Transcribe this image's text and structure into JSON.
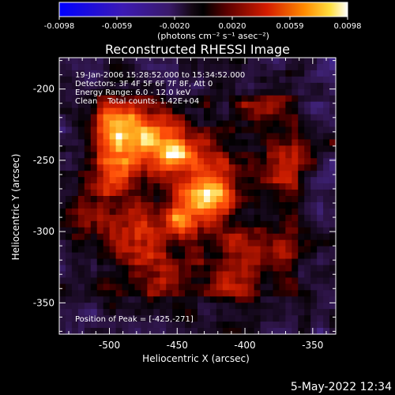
{
  "colorbar": {
    "ticks": [
      "-0.0098",
      "-0.0059",
      "-0.0020",
      "0.0020",
      "0.0059",
      "0.0098"
    ],
    "unit_label": "(photons cm⁻² s⁻¹ asec⁻²)",
    "range": [
      -0.0098,
      0.0098
    ],
    "colormap": "rhessi-bluewhite-diverging"
  },
  "chart_data": {
    "type": "heatmap",
    "title": "Reconstructed RHESSI Image",
    "xlabel": "Heliocentric X (arcsec)",
    "ylabel": "Heliocentric Y (arcsec)",
    "xlim": [
      -537,
      -333
    ],
    "ylim": [
      -372,
      -178
    ],
    "x_ticks": [
      "-500",
      "-450",
      "-400",
      "-350"
    ],
    "x_tick_values": [
      -500,
      -450,
      -400,
      -350
    ],
    "y_ticks": [
      "-200",
      "-250",
      "-300",
      "-350"
    ],
    "y_tick_values": [
      -200,
      -250,
      -300,
      -350
    ],
    "grid": false,
    "peak": {
      "x": -425,
      "y": -271,
      "value": 0.0098
    },
    "annotations": [
      "19-Jan-2006 15:28:52.000 to 15:34:52.000",
      "Detectors: 3F 4F 5F 6F 7F 8F, Att 0",
      "Energy Range: 6.0 - 12.0 keV",
      "Clean    Total counts: 1.42E+04"
    ],
    "peak_label": "Position of Peak = [-425,-271]"
  },
  "footer": {
    "timestamp": "5-May-2022 12:34"
  }
}
